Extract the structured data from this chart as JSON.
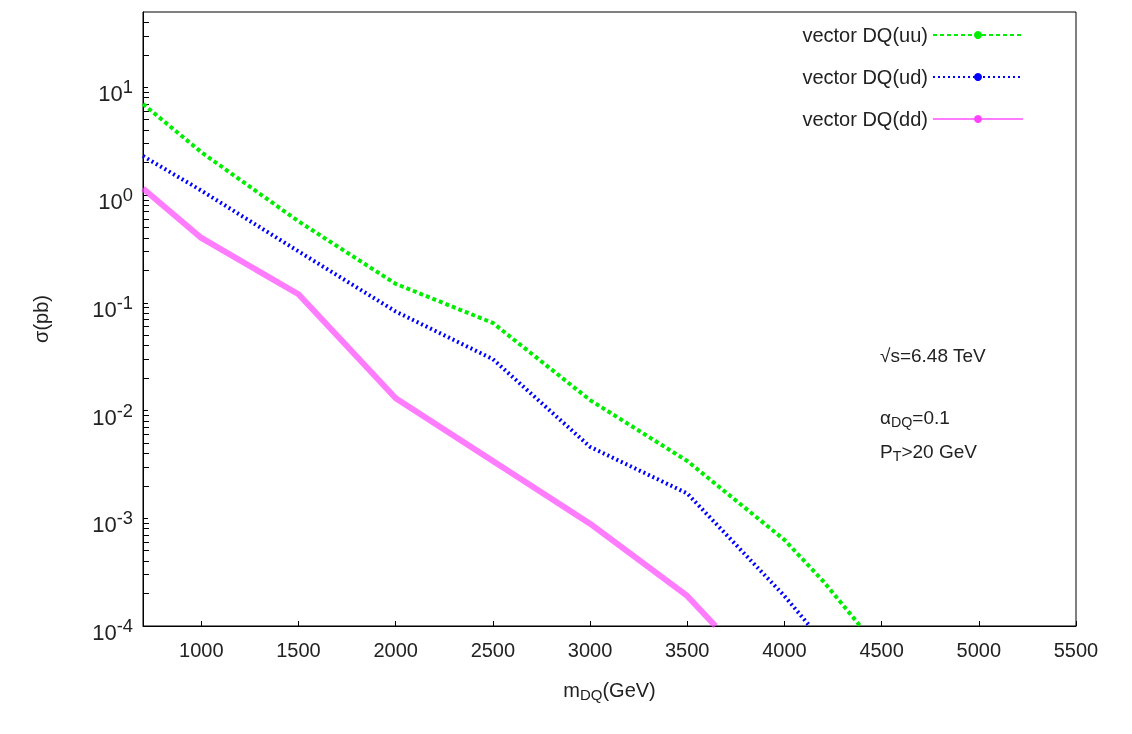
{
  "chart_data": {
    "type": "line",
    "xlabel": "m$_{DQ}$(GeV)",
    "ylabel": "σ(pb)",
    "log": "y",
    "grid": false,
    "legend": "top right",
    "marker": "none",
    "xlim": [
      700,
      5500
    ],
    "xticks": [
      1000,
      1500,
      2000,
      2500,
      3000,
      3500,
      4000,
      4500,
      5000,
      5500
    ],
    "ylim": [
      0.0001,
      50
    ],
    "yticks": [
      {
        "value": 0.0001,
        "label": "10$^{-4}$"
      },
      {
        "value": 0.001,
        "label": "10$^{-3}$"
      },
      {
        "value": 0.01,
        "label": "10$^{-2}$"
      },
      {
        "value": 0.1,
        "label": "10$^{-1}$"
      },
      {
        "value": 1,
        "label": "10$^{0}$"
      },
      {
        "value": 10,
        "label": "10$^{1}$"
      }
    ],
    "annotations": [
      "√s=6.48 TeV",
      "α$_{DQ}$=0.1",
      "P$_{T}$>20 GeV"
    ],
    "series": [
      {
        "name": "vector DQ(uu)",
        "color": "#00ee00",
        "line_style": "dashed",
        "x": [
          700,
          1000,
          1500,
          2000,
          2500,
          3000,
          3500,
          4000,
          4200,
          4390
        ],
        "values": [
          7.0,
          2.5,
          0.57,
          0.15,
          0.065,
          0.0125,
          0.0034,
          0.00063,
          0.00026,
          0.0001
        ]
      },
      {
        "name": "vector DQ(ud)",
        "color": "#0000ff",
        "line_style": "dotted",
        "x": [
          700,
          1000,
          1500,
          2000,
          2500,
          3000,
          3500,
          4000,
          4130
        ],
        "values": [
          2.3,
          1.1,
          0.3,
          0.083,
          0.03,
          0.0046,
          0.0017,
          0.00019,
          0.0001
        ]
      },
      {
        "name": "vector DQ(dd)",
        "color": "#ff44ff",
        "line_style": "solid",
        "x": [
          700,
          1000,
          1500,
          2000,
          2500,
          3000,
          3500,
          3645
        ],
        "values": [
          1.15,
          0.4,
          0.12,
          0.013,
          0.0034,
          0.00089,
          0.00019,
          0.0001
        ]
      }
    ]
  }
}
